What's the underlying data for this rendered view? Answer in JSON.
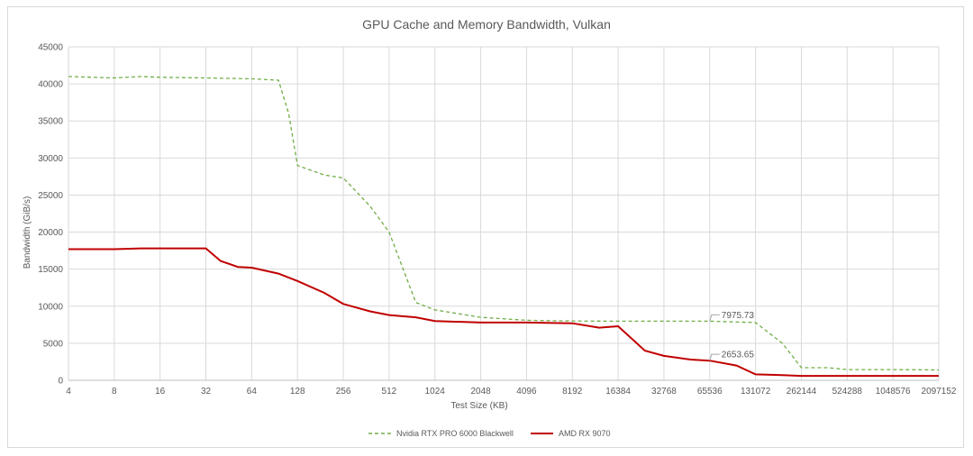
{
  "chart_data": {
    "type": "line",
    "title": "GPU Cache and Memory Bandwidth, Vulkan",
    "xlabel": "Test Size (KB)",
    "ylabel": "Bandwidth (GiB/s)",
    "x_scale": "log2",
    "xlim": [
      4,
      2097152
    ],
    "ylim": [
      0,
      45000
    ],
    "y_ticks": [
      0,
      5000,
      10000,
      15000,
      20000,
      25000,
      30000,
      35000,
      40000,
      45000
    ],
    "x_ticks": [
      4,
      8,
      16,
      32,
      64,
      128,
      256,
      512,
      1024,
      2048,
      4096,
      8192,
      16384,
      32768,
      65536,
      131072,
      262144,
      524288,
      1048576,
      2097152
    ],
    "grid": true,
    "legend_position": "bottom",
    "series": [
      {
        "name": "Nvidia RTX PRO 6000 Blackwell",
        "color": "#70ad47",
        "style": "dashed",
        "points": [
          [
            4,
            41000
          ],
          [
            8,
            40800
          ],
          [
            12,
            41000
          ],
          [
            16,
            40900
          ],
          [
            32,
            40800
          ],
          [
            64,
            40700
          ],
          [
            96,
            40500
          ],
          [
            112,
            36000
          ],
          [
            128,
            29000
          ],
          [
            192,
            27700
          ],
          [
            256,
            27300
          ],
          [
            384,
            23500
          ],
          [
            512,
            20000
          ],
          [
            768,
            10500
          ],
          [
            1024,
            9500
          ],
          [
            2048,
            8500
          ],
          [
            4096,
            8100
          ],
          [
            8192,
            8000
          ],
          [
            16384,
            7976
          ],
          [
            32768,
            7976
          ],
          [
            65536,
            7975.73
          ],
          [
            131072,
            7800
          ],
          [
            196608,
            5000
          ],
          [
            262144,
            1700
          ],
          [
            393216,
            1700
          ],
          [
            524288,
            1450
          ],
          [
            1048576,
            1450
          ],
          [
            2097152,
            1400
          ]
        ]
      },
      {
        "name": "AMD RX 9070",
        "color": "#c00000",
        "style": "solid",
        "points": [
          [
            4,
            17700
          ],
          [
            8,
            17700
          ],
          [
            12,
            17800
          ],
          [
            16,
            17800
          ],
          [
            32,
            17800
          ],
          [
            40,
            16100
          ],
          [
            52,
            15300
          ],
          [
            64,
            15200
          ],
          [
            96,
            14400
          ],
          [
            128,
            13400
          ],
          [
            192,
            11800
          ],
          [
            256,
            10300
          ],
          [
            384,
            9300
          ],
          [
            512,
            8800
          ],
          [
            768,
            8500
          ],
          [
            1024,
            8000
          ],
          [
            2048,
            7800
          ],
          [
            4096,
            7800
          ],
          [
            8192,
            7700
          ],
          [
            12288,
            7100
          ],
          [
            16384,
            7300
          ],
          [
            24576,
            4000
          ],
          [
            32768,
            3300
          ],
          [
            49152,
            2800
          ],
          [
            65536,
            2653.65
          ],
          [
            98304,
            2000
          ],
          [
            131072,
            800
          ],
          [
            196608,
            700
          ],
          [
            262144,
            600
          ],
          [
            524288,
            600
          ],
          [
            1048576,
            600
          ],
          [
            2097152,
            600
          ]
        ]
      }
    ],
    "annotations": [
      {
        "label": "7975.73",
        "series": 0,
        "x": 65536,
        "y": 7975.73
      },
      {
        "label": "2653.65",
        "series": 1,
        "x": 65536,
        "y": 2653.65
      }
    ]
  }
}
